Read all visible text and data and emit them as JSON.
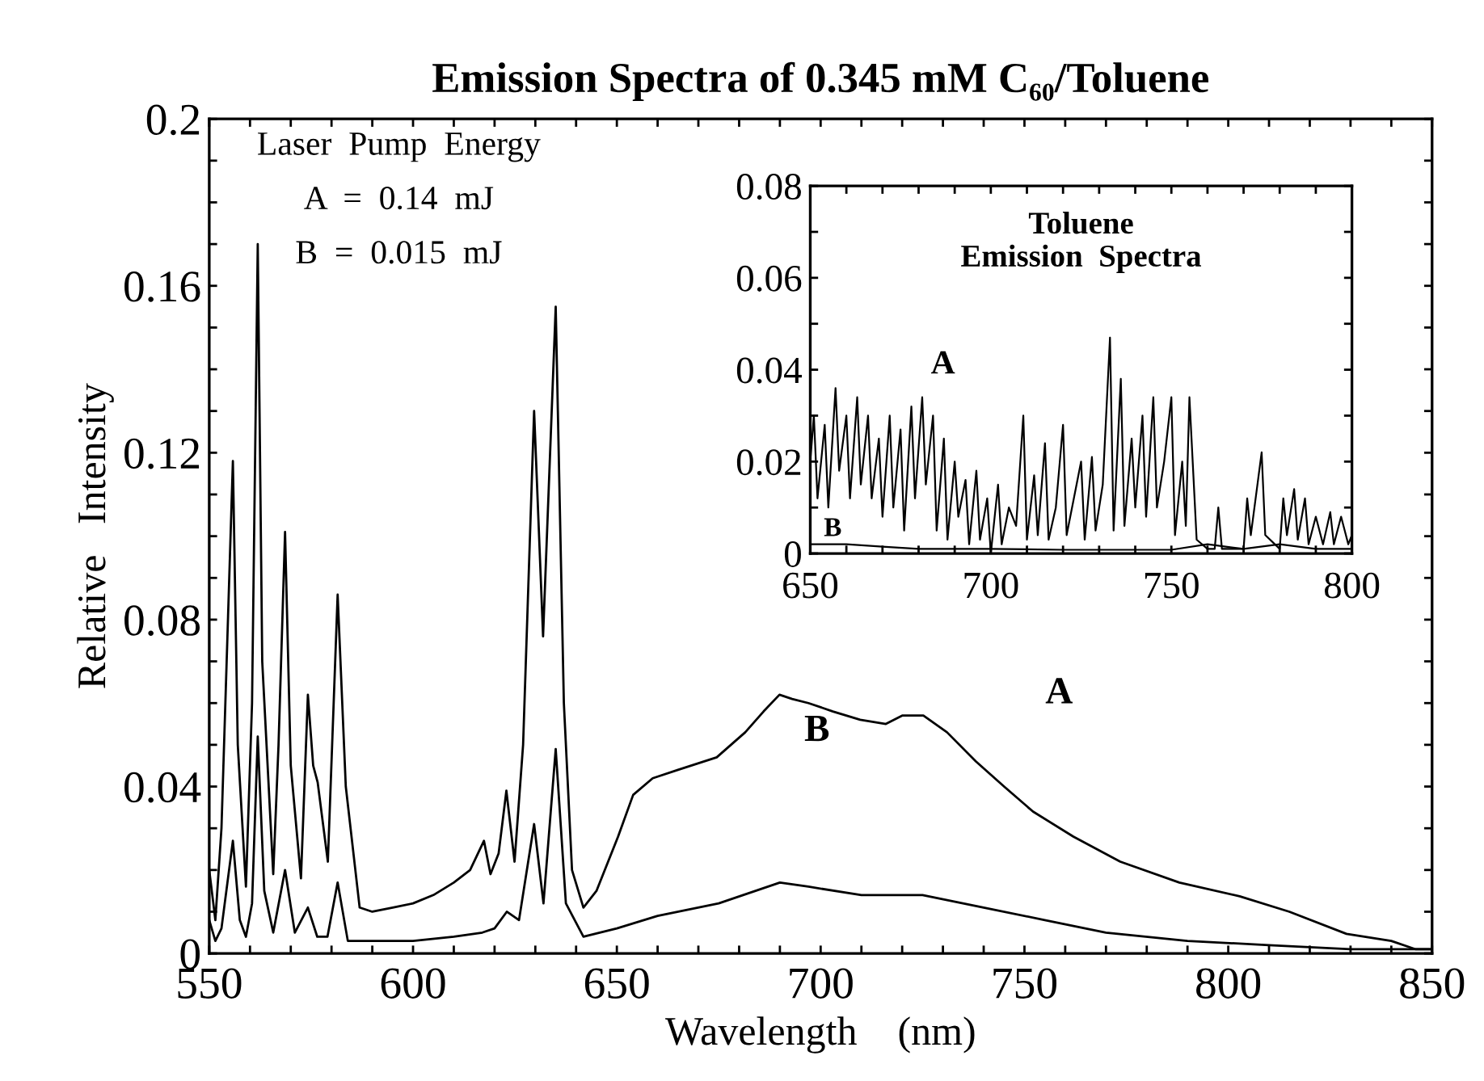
{
  "chart_data": [
    {
      "type": "line",
      "title": "Emission Spectra of 0.345 mM C₆₀/Toluene",
      "xlabel": "Wavelength    (nm)",
      "ylabel": "Relative   Intensity",
      "xlim": [
        550,
        850
      ],
      "ylim": [
        0,
        0.2
      ],
      "xticks": [
        550,
        {
          "value": 560,
          "label": null
        },
        {
          "value": 570,
          "label": null
        },
        {
          "value": 580,
          "label": null
        },
        {
          "value": 590,
          "label": null
        },
        600,
        {
          "value": 610,
          "label": null
        },
        {
          "value": 620,
          "label": null
        },
        {
          "value": 630,
          "label": null
        },
        {
          "value": 640,
          "label": null
        },
        650,
        {
          "value": 660,
          "label": null
        },
        {
          "value": 670,
          "label": null
        },
        {
          "value": 680,
          "label": null
        },
        {
          "value": 690,
          "label": null
        },
        700,
        {
          "value": 710,
          "label": null
        },
        {
          "value": 720,
          "label": null
        },
        {
          "value": 730,
          "label": null
        },
        {
          "value": 740,
          "label": null
        },
        750,
        {
          "value": 760,
          "label": null
        },
        {
          "value": 770,
          "label": null
        },
        {
          "value": 780,
          "label": null
        },
        {
          "value": 790,
          "label": null
        },
        800,
        {
          "value": 810,
          "label": null
        },
        {
          "value": 820,
          "label": null
        },
        {
          "value": 830,
          "label": null
        },
        {
          "value": 840,
          "label": null
        },
        850
      ],
      "yticks": [
        0,
        {
          "value": 0.01,
          "label": null
        },
        {
          "value": 0.02,
          "label": null
        },
        {
          "value": 0.03,
          "label": null
        },
        0.04,
        {
          "value": 0.05,
          "label": null
        },
        {
          "value": 0.06,
          "label": null
        },
        {
          "value": 0.07,
          "label": null
        },
        0.08,
        {
          "value": 0.09,
          "label": null
        },
        {
          "value": 0.1,
          "label": null
        },
        {
          "value": 0.11,
          "label": null
        },
        0.12,
        {
          "value": 0.13,
          "label": null
        },
        {
          "value": 0.14,
          "label": null
        },
        {
          "value": 0.15,
          "label": null
        },
        0.16,
        {
          "value": 0.17,
          "label": null
        },
        {
          "value": 0.18,
          "label": null
        },
        {
          "value": 0.19,
          "label": null
        },
        0.2
      ],
      "grid": false,
      "legend": false,
      "line_style": "solid",
      "series": [
        {
          "color": "#000000",
          "x": [
            550,
            551.5,
            553,
            555.8,
            557,
            559,
            560.5,
            561.9,
            563,
            565.7,
            567,
            568.6,
            570,
            572.5,
            574.2,
            575.5,
            576.6,
            579.1,
            581.5,
            583.5,
            586.9,
            590,
            595,
            600,
            605,
            610,
            614,
            617.4,
            619,
            621,
            622.9,
            624.9,
            627,
            629.7,
            631.9,
            635,
            637,
            639,
            641.8,
            645,
            650.3,
            654,
            658.8,
            665,
            674.5,
            681.5,
            686,
            689.9,
            693,
            697,
            703,
            709.7,
            716,
            720,
            725.2,
            731,
            738.1,
            745,
            752.1,
            762,
            773.5,
            788,
            802.8,
            815,
            829,
            840,
            846,
            850
          ],
          "values": [
            0.02,
            0.008,
            0.03,
            0.118,
            0.05,
            0.016,
            0.06,
            0.17,
            0.07,
            0.019,
            0.05,
            0.101,
            0.045,
            0.018,
            0.062,
            0.045,
            0.041,
            0.022,
            0.086,
            0.04,
            0.011,
            0.01,
            0.011,
            0.012,
            0.014,
            0.017,
            0.02,
            0.027,
            0.019,
            0.024,
            0.039,
            0.022,
            0.05,
            0.13,
            0.076,
            0.155,
            0.06,
            0.02,
            0.011,
            0.015,
            0.028,
            0.038,
            0.042,
            0.044,
            0.047,
            0.053,
            0.058,
            0.062,
            0.061,
            0.06,
            0.058,
            0.056,
            0.055,
            0.057,
            0.057,
            0.053,
            0.046,
            0.04,
            0.034,
            0.028,
            0.022,
            0.017,
            0.0137,
            0.01,
            0.0047,
            0.003,
            0.001,
            0.001
          ]
        },
        {
          "color": "#000000",
          "x": [
            550,
            551.5,
            553,
            555.8,
            557.5,
            559,
            560.5,
            561.9,
            563.5,
            565.7,
            568.6,
            571,
            574.2,
            576.5,
            579,
            581.5,
            584,
            590,
            600,
            610,
            617,
            620,
            623,
            626,
            629.7,
            632,
            635,
            637.5,
            641.8,
            650,
            660,
            675,
            690,
            697,
            710,
            725,
            740,
            755,
            770,
            790,
            810,
            830,
            850
          ],
          "values": [
            0.008,
            0.003,
            0.006,
            0.027,
            0.008,
            0.004,
            0.012,
            0.052,
            0.015,
            0.005,
            0.02,
            0.005,
            0.011,
            0.004,
            0.004,
            0.017,
            0.003,
            0.003,
            0.003,
            0.004,
            0.005,
            0.006,
            0.01,
            0.008,
            0.031,
            0.012,
            0.049,
            0.012,
            0.004,
            0.006,
            0.009,
            0.012,
            0.017,
            0.016,
            0.014,
            0.014,
            0.011,
            0.008,
            0.005,
            0.003,
            0.002,
            0.001,
            0.001
          ]
        }
      ],
      "annotations": [
        "Laser  Pump  Energy",
        "A  =  0.14  mJ",
        "B  =  0.015  mJ",
        "A",
        "B"
      ]
    },
    {
      "type": "line",
      "title": "Toluene\nEmission  Spectra",
      "xlim": [
        650,
        800
      ],
      "ylim": [
        0,
        0.08
      ],
      "xticks": [
        650,
        {
          "value": 660,
          "label": null
        },
        {
          "value": 670,
          "label": null
        },
        {
          "value": 680,
          "label": null
        },
        {
          "value": 690,
          "label": null
        },
        700,
        {
          "value": 710,
          "label": null
        },
        {
          "value": 720,
          "label": null
        },
        {
          "value": 730,
          "label": null
        },
        {
          "value": 740,
          "label": null
        },
        750,
        {
          "value": 760,
          "label": null
        },
        {
          "value": 770,
          "label": null
        },
        {
          "value": 780,
          "label": null
        },
        {
          "value": 790,
          "label": null
        },
        800
      ],
      "yticks": [
        0,
        {
          "value": 0.01,
          "label": null
        },
        0.02,
        {
          "value": 0.03,
          "label": null
        },
        0.04,
        {
          "value": 0.05,
          "label": null
        },
        0.06,
        {
          "value": 0.07,
          "label": null
        },
        0.08
      ],
      "grid": false,
      "legend": false,
      "line_style": "solid",
      "series": [
        {
          "color": "#000000",
          "x": [
            650,
            651,
            652,
            654,
            655,
            657,
            658,
            660,
            661,
            663,
            664,
            666,
            667,
            669,
            670,
            672,
            673,
            675,
            676,
            678,
            679,
            681,
            682,
            684,
            685,
            687,
            688,
            690,
            691,
            693,
            694,
            696,
            697,
            699,
            700,
            702,
            703,
            705,
            707,
            709,
            710,
            712,
            713,
            715,
            716,
            718,
            720,
            721,
            723,
            725,
            726,
            728,
            729,
            731,
            733,
            734,
            736,
            737,
            739,
            740,
            742,
            743,
            745,
            746,
            748,
            750,
            751,
            753,
            754,
            755,
            757,
            760,
            762,
            763,
            764,
            770,
            771,
            772,
            774,
            775,
            776,
            780,
            781,
            782,
            784,
            785,
            787,
            788,
            790,
            792,
            794,
            795,
            797,
            799,
            800
          ],
          "values": [
            0.02,
            0.03,
            0.012,
            0.028,
            0.01,
            0.036,
            0.018,
            0.03,
            0.012,
            0.034,
            0.015,
            0.03,
            0.012,
            0.025,
            0.008,
            0.03,
            0.01,
            0.027,
            0.005,
            0.032,
            0.012,
            0.034,
            0.015,
            0.03,
            0.005,
            0.025,
            0.003,
            0.02,
            0.008,
            0.016,
            0.002,
            0.018,
            0.003,
            0.012,
            0.0,
            0.015,
            0.002,
            0.01,
            0.006,
            0.03,
            0.003,
            0.017,
            0.004,
            0.024,
            0.003,
            0.01,
            0.028,
            0.004,
            0.012,
            0.02,
            0.003,
            0.021,
            0.005,
            0.015,
            0.047,
            0.005,
            0.038,
            0.006,
            0.025,
            0.01,
            0.03,
            0.008,
            0.034,
            0.01,
            0.02,
            0.034,
            0.004,
            0.02,
            0.006,
            0.034,
            0.003,
            0.001,
            0.001,
            0.01,
            0.001,
            0.001,
            0.012,
            0.004,
            0.016,
            0.022,
            0.004,
            0.001,
            0.012,
            0.004,
            0.014,
            0.003,
            0.012,
            0.002,
            0.008,
            0.002,
            0.009,
            0.002,
            0.008,
            0.002,
            0.004
          ]
        },
        {
          "color": "#000000",
          "x": [
            650,
            660,
            670,
            680,
            700,
            720,
            750,
            760,
            770,
            780,
            790,
            800
          ],
          "values": [
            0.002,
            0.002,
            0.0015,
            0.001,
            0.001,
            0.0008,
            0.0008,
            0.002,
            0.001,
            0.002,
            0.001,
            0.001
          ]
        }
      ],
      "annotations": [
        "A",
        "B"
      ]
    }
  ]
}
